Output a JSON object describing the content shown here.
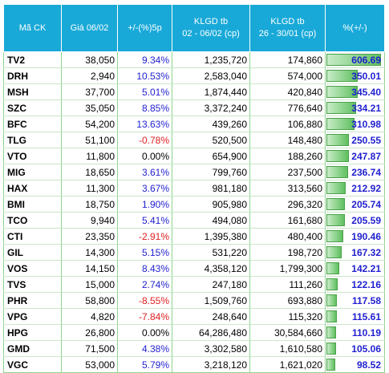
{
  "headers": {
    "symbol": "Mã CK",
    "price": "Giá 06/02",
    "change": "+/-(%)5p",
    "vol1_line1": "KLGD tb",
    "vol1_line2": "02 - 06/02 (cp)",
    "vol2_line1": "KLGD tb",
    "vol2_line2": "26 - 30/01 (cp)",
    "pct": "%(+/-)"
  },
  "colors": {
    "header_bg": "#19a9d8",
    "positive": "#1f1fd0",
    "negative": "#e02020",
    "bar": "#5fc05f"
  },
  "rows": [
    {
      "symbol": "TV2",
      "price": "38,050",
      "change": "9.34%",
      "vol1": "1,235,720",
      "vol2": "174,860",
      "pct": "606.69",
      "pct_value": 606.69
    },
    {
      "symbol": "DRH",
      "price": "2,940",
      "change": "10.53%",
      "vol1": "2,583,040",
      "vol2": "574,000",
      "pct": "350.01",
      "pct_value": 350.01
    },
    {
      "symbol": "MSH",
      "price": "37,700",
      "change": "5.01%",
      "vol1": "1,874,440",
      "vol2": "420,840",
      "pct": "345.40",
      "pct_value": 345.4
    },
    {
      "symbol": "SZC",
      "price": "35,050",
      "change": "8.85%",
      "vol1": "3,372,240",
      "vol2": "776,640",
      "pct": "334.21",
      "pct_value": 334.21
    },
    {
      "symbol": "BFC",
      "price": "54,200",
      "change": "13.63%",
      "vol1": "439,260",
      "vol2": "106,880",
      "pct": "310.98",
      "pct_value": 310.98
    },
    {
      "symbol": "TLG",
      "price": "51,100",
      "change": "-0.78%",
      "vol1": "520,500",
      "vol2": "148,480",
      "pct": "250.55",
      "pct_value": 250.55
    },
    {
      "symbol": "VTO",
      "price": "11,800",
      "change": "0.00%",
      "vol1": "654,900",
      "vol2": "188,260",
      "pct": "247.87",
      "pct_value": 247.87
    },
    {
      "symbol": "MIG",
      "price": "18,650",
      "change": "3.61%",
      "vol1": "799,760",
      "vol2": "237,500",
      "pct": "236.74",
      "pct_value": 236.74
    },
    {
      "symbol": "HAX",
      "price": "11,300",
      "change": "3.67%",
      "vol1": "981,180",
      "vol2": "313,560",
      "pct": "212.92",
      "pct_value": 212.92
    },
    {
      "symbol": "BMI",
      "price": "18,750",
      "change": "1.90%",
      "vol1": "905,980",
      "vol2": "296,320",
      "pct": "205.74",
      "pct_value": 205.74
    },
    {
      "symbol": "TCO",
      "price": "9,940",
      "change": "5.41%",
      "vol1": "494,080",
      "vol2": "161,680",
      "pct": "205.59",
      "pct_value": 205.59
    },
    {
      "symbol": "CTI",
      "price": "23,350",
      "change": "-2.91%",
      "vol1": "1,395,380",
      "vol2": "480,400",
      "pct": "190.46",
      "pct_value": 190.46
    },
    {
      "symbol": "GIL",
      "price": "14,300",
      "change": "5.15%",
      "vol1": "531,220",
      "vol2": "198,720",
      "pct": "167.32",
      "pct_value": 167.32
    },
    {
      "symbol": "VOS",
      "price": "14,150",
      "change": "8.43%",
      "vol1": "4,358,120",
      "vol2": "1,799,300",
      "pct": "142.21",
      "pct_value": 142.21
    },
    {
      "symbol": "TVS",
      "price": "15,000",
      "change": "2.74%",
      "vol1": "247,180",
      "vol2": "111,260",
      "pct": "122.16",
      "pct_value": 122.16
    },
    {
      "symbol": "PHR",
      "price": "58,800",
      "change": "-8.55%",
      "vol1": "1,509,760",
      "vol2": "693,880",
      "pct": "117.58",
      "pct_value": 117.58
    },
    {
      "symbol": "VPG",
      "price": "4,820",
      "change": "-7.84%",
      "vol1": "248,640",
      "vol2": "115,320",
      "pct": "115.61",
      "pct_value": 115.61
    },
    {
      "symbol": "HPG",
      "price": "26,800",
      "change": "0.00%",
      "vol1": "64,286,480",
      "vol2": "30,584,660",
      "pct": "110.19",
      "pct_value": 110.19
    },
    {
      "symbol": "GMD",
      "price": "71,500",
      "change": "4.38%",
      "vol1": "3,302,580",
      "vol2": "1,610,580",
      "pct": "105.06",
      "pct_value": 105.06
    },
    {
      "symbol": "VGC",
      "price": "53,000",
      "change": "5.79%",
      "vol1": "3,218,120",
      "vol2": "1,621,020",
      "pct": "98.52",
      "pct_value": 98.52
    }
  ]
}
